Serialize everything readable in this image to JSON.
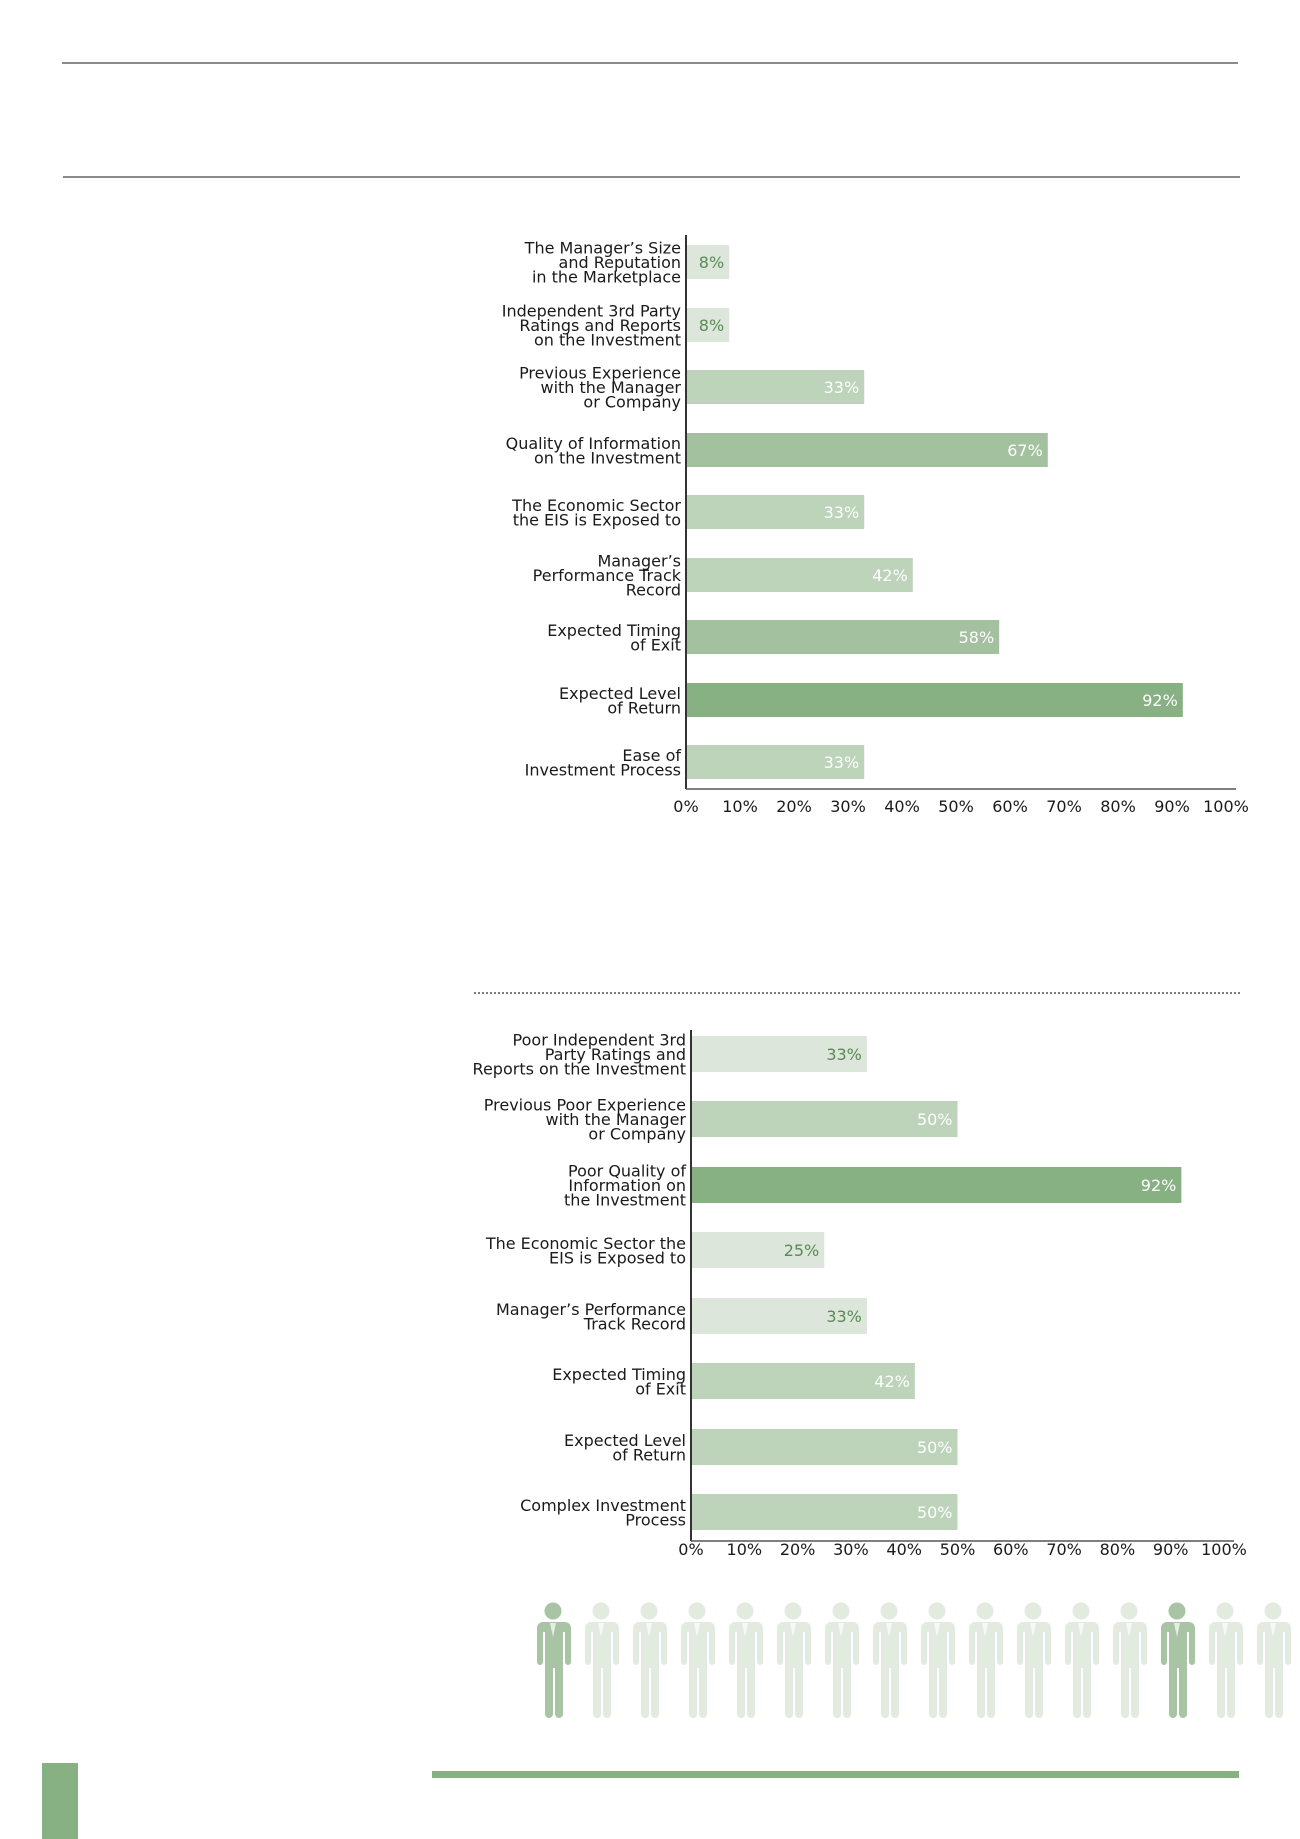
{
  "colors": {
    "bar_light": "#dce6da",
    "bar_mid": "#bdd3ba",
    "bar_medium": "#a3c19f",
    "bar_dark": "#87b083",
    "label_on_light": "#5a8a56",
    "label_on_dark": "#ffffff",
    "person_highlight": "#a9c4a5",
    "person_faded": "#e3ebe1"
  },
  "people_icons": {
    "count": 16,
    "highlighted_positions": [
      1,
      14
    ],
    "icon": "person-icon"
  },
  "chart_data": [
    {
      "type": "bar",
      "orientation": "horizontal",
      "title": "",
      "xlabel": "",
      "ylabel": "",
      "xlim": [
        0,
        100
      ],
      "ticks": [
        "0%",
        "10%",
        "20%",
        "30%",
        "40%",
        "50%",
        "60%",
        "70%",
        "80%",
        "90%",
        "100%"
      ],
      "categories": [
        [
          "The Manager’s Size",
          "and Reputation",
          "in the Marketplace"
        ],
        [
          "Independent 3rd Party",
          "Ratings and Reports",
          "on the Investment"
        ],
        [
          "Previous Experience",
          "with the Manager",
          "or Company"
        ],
        [
          "Quality of Information",
          "on the Investment"
        ],
        [
          "The Economic Sector",
          "the EIS is Exposed to"
        ],
        [
          "Manager’s",
          "Performance Track",
          "Record"
        ],
        [
          "Expected Timing",
          "of Exit"
        ],
        [
          "Expected Level",
          "of Return"
        ],
        [
          "Ease of",
          "Investment Process"
        ]
      ],
      "values": [
        8,
        8,
        33,
        67,
        33,
        42,
        58,
        92,
        33
      ],
      "value_labels": [
        "8%",
        "8%",
        "33%",
        "67%",
        "33%",
        "42%",
        "58%",
        "92%",
        "33%"
      ],
      "bar_colors": [
        "#dce6da",
        "#dce6da",
        "#bdd3ba",
        "#a3c19f",
        "#bdd3ba",
        "#bdd3ba",
        "#a3c19f",
        "#87b083",
        "#bdd3ba"
      ],
      "label_colors": [
        "#5a8a56",
        "#5a8a56",
        "#ffffff",
        "#ffffff",
        "#ffffff",
        "#ffffff",
        "#ffffff",
        "#ffffff",
        "#ffffff"
      ]
    },
    {
      "type": "bar",
      "orientation": "horizontal",
      "title": "",
      "xlabel": "",
      "ylabel": "",
      "xlim": [
        0,
        100
      ],
      "ticks": [
        "0%",
        "10%",
        "20%",
        "30%",
        "40%",
        "50%",
        "60%",
        "70%",
        "80%",
        "90%",
        "100%"
      ],
      "categories": [
        [
          "Poor Independent 3rd",
          "Party Ratings and",
          "Reports on the Investment"
        ],
        [
          "Previous Poor Experience",
          "with the Manager",
          "or Company"
        ],
        [
          "Poor Quality of",
          "Information on",
          "the Investment"
        ],
        [
          "The Economic Sector the",
          "EIS is Exposed to"
        ],
        [
          "Manager’s Performance",
          "Track Record"
        ],
        [
          "Expected Timing",
          "of Exit"
        ],
        [
          "Expected Level",
          "of Return"
        ],
        [
          "Complex Investment",
          "Process"
        ]
      ],
      "values": [
        33,
        50,
        92,
        25,
        33,
        42,
        50,
        50
      ],
      "value_labels": [
        "33%",
        "50%",
        "92%",
        "25%",
        "33%",
        "42%",
        "50%",
        "50%"
      ],
      "bar_colors": [
        "#dce6da",
        "#bdd3ba",
        "#87b083",
        "#dce6da",
        "#dce6da",
        "#bdd3ba",
        "#bdd3ba",
        "#bdd3ba"
      ],
      "label_colors": [
        "#5a8a56",
        "#ffffff",
        "#ffffff",
        "#5a8a56",
        "#5a8a56",
        "#ffffff",
        "#ffffff",
        "#ffffff"
      ]
    }
  ]
}
